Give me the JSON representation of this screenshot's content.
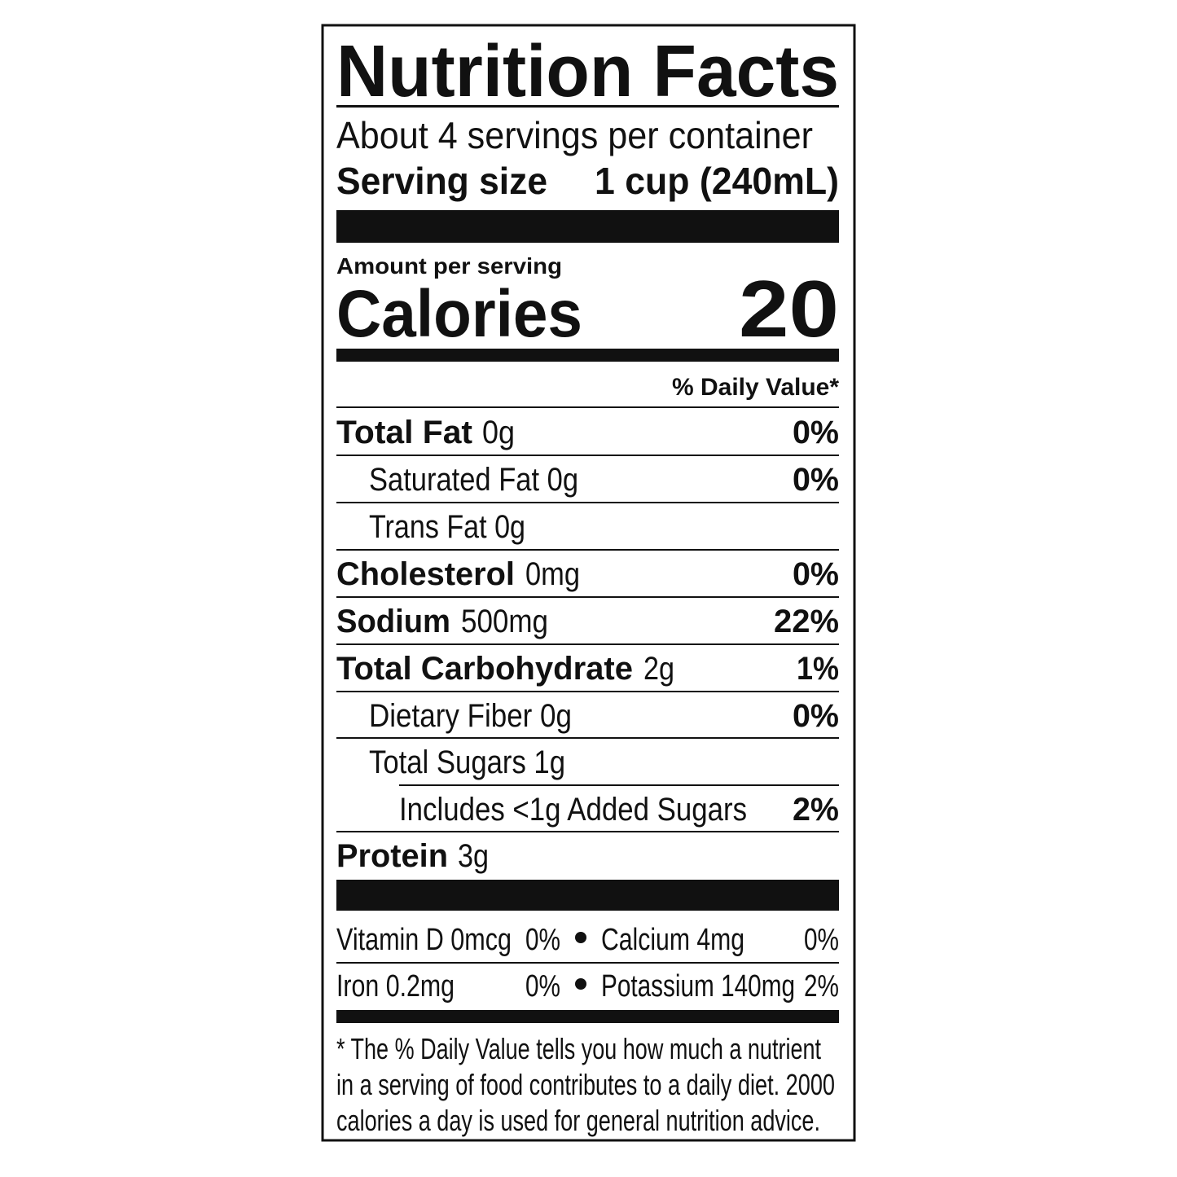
{
  "header": {
    "title": "Nutrition Facts",
    "servings": "About 4 servings per container",
    "serving_size_label": "Serving size",
    "serving_size_value": "1 cup (240mL)"
  },
  "calories": {
    "amount_label": "Amount per serving",
    "label": "Calories",
    "value": "20"
  },
  "daily_value_header": "% Daily Value*",
  "nutrients": [
    {
      "name": "Total Fat",
      "amount": "0g",
      "dv": "0%"
    },
    {
      "name": "Saturated Fat 0g",
      "dv": "0%"
    },
    {
      "name": "Trans Fat 0g"
    },
    {
      "name": "Cholesterol",
      "amount": "0mg",
      "dv": "0%"
    },
    {
      "name": "Sodium",
      "amount": "500mg",
      "dv": "22%"
    },
    {
      "name": "Total Carbohydrate",
      "amount": "2g",
      "dv": "1%"
    },
    {
      "name": "Dietary Fiber 0g",
      "dv": "0%"
    },
    {
      "name": "Total Sugars 1g"
    },
    {
      "name": "Includes <1g Added Sugars",
      "dv": "2%"
    },
    {
      "name": "Protein",
      "amount": "3g"
    }
  ],
  "vitamins": [
    {
      "name": "Vitamin D 0mcg",
      "dv": "0%"
    },
    {
      "name": "Calcium 4mg",
      "dv": "0%"
    },
    {
      "name": "Iron 0.2mg",
      "dv": "0%"
    },
    {
      "name": "Potassium 140mg",
      "dv": "2%"
    }
  ],
  "footnote": [
    "* The % Daily Value tells you how much a nutrient",
    "in a serving of food contributes to a daily diet. 2000",
    "calories a day is used for general nutrition advice."
  ]
}
